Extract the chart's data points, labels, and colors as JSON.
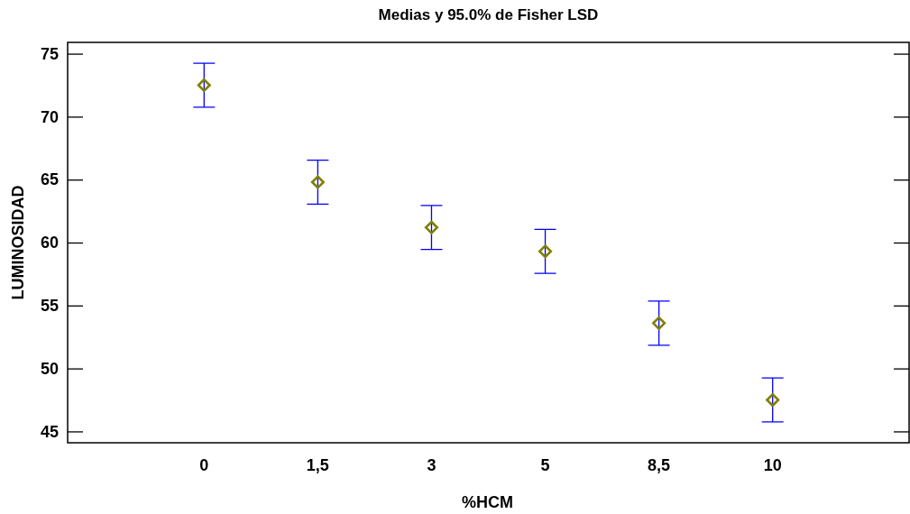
{
  "chart_data": {
    "type": "scatter",
    "title": "Medias y 95.0% de Fisher LSD",
    "xlabel": "%HCM",
    "ylabel": "LUMINOSIDAD",
    "categories": [
      "0",
      "1,5",
      "3",
      "5",
      "8,5",
      "10"
    ],
    "series": [
      {
        "color": "#808000",
        "values": [
          72.5,
          64.8,
          61.2,
          59.3,
          53.6,
          47.5
        ],
        "errors": [
          1.75,
          1.75,
          1.75,
          1.75,
          1.75,
          1.75
        ]
      }
    ],
    "ylim": [
      44.1,
      75.9
    ],
    "yticks": [
      45,
      50,
      55,
      60,
      65,
      70,
      75
    ],
    "marker": "diamond"
  }
}
